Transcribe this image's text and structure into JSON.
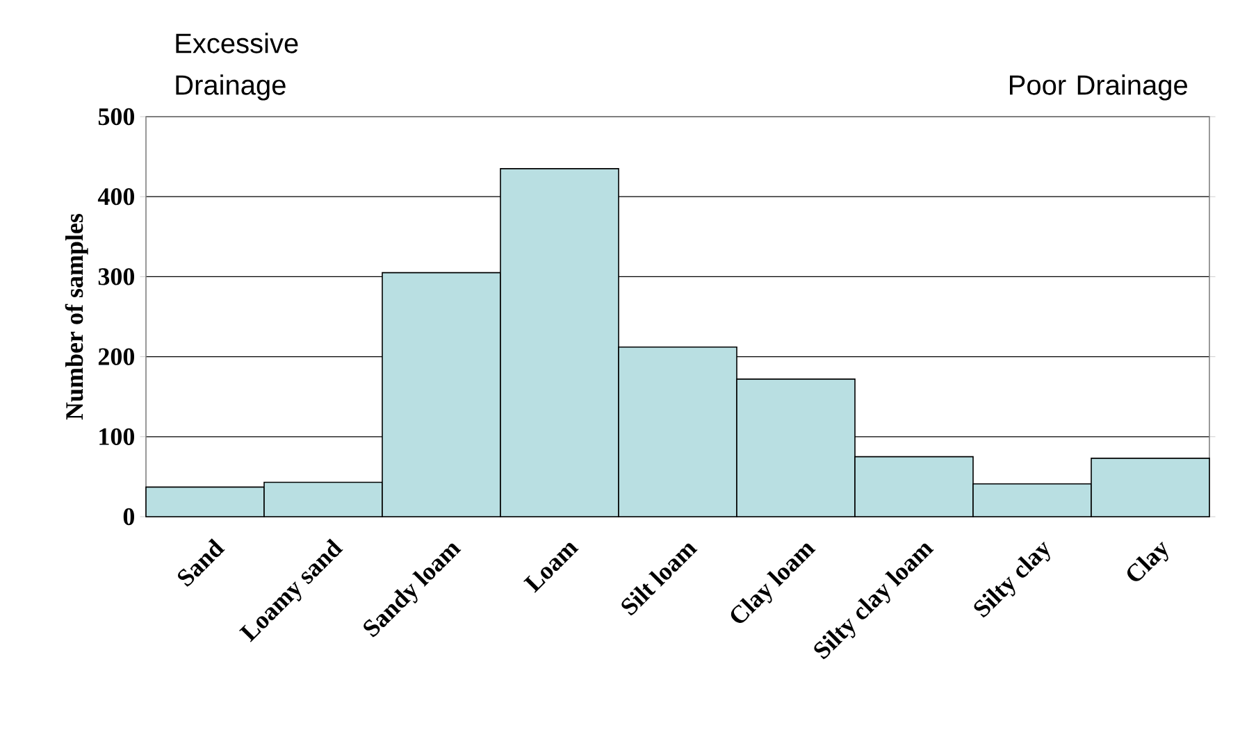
{
  "chart_data": {
    "type": "bar",
    "ylabel": "Number of samples",
    "categories": [
      "Sand",
      "Loamy sand",
      "Sandy loam",
      "Loam",
      "Silt loam",
      "Clay loam",
      "Silty clay loam",
      "Silty clay",
      "Clay"
    ],
    "values": [
      37,
      43,
      305,
      435,
      212,
      172,
      75,
      41,
      73
    ],
    "color": "#b9dfe2",
    "ylim": [
      0,
      500
    ],
    "yticks": [
      0,
      100,
      200,
      300,
      400,
      500
    ],
    "grid": "y",
    "annotations": [
      "Excessive Drainage",
      "Poor Drainage"
    ]
  }
}
